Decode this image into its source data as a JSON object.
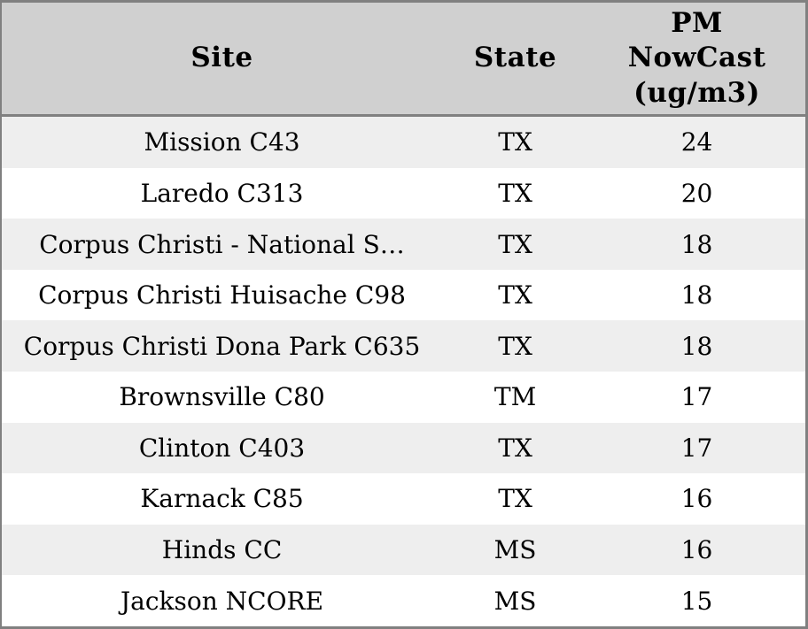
{
  "chart_data": {
    "type": "table",
    "columns": [
      "Site",
      "State",
      "PM NowCast (ug/m3)"
    ],
    "rows": [
      [
        "Mission C43",
        "TX",
        24
      ],
      [
        "Laredo C313",
        "TX",
        20
      ],
      [
        "Corpus Christi - National S…",
        "TX",
        18
      ],
      [
        "Corpus Christi Huisache C98",
        "TX",
        18
      ],
      [
        "Corpus Christi Dona Park C635",
        "TX",
        18
      ],
      [
        "Brownsville C80",
        "TM",
        17
      ],
      [
        "Clinton C403",
        "TX",
        17
      ],
      [
        "Karnack C85",
        "TX",
        16
      ],
      [
        "Hinds CC",
        "MS",
        16
      ],
      [
        "Jackson NCORE",
        "MS",
        15
      ]
    ]
  },
  "table": {
    "headers": {
      "site": "Site",
      "state": "State",
      "pm": "PM\nNowCast\n(ug/m3)"
    }
  },
  "colors": {
    "header_bg": "#d0d0d0",
    "row_alt_bg": "#eeeeee",
    "row_bg": "#ffffff",
    "border": "#808080",
    "text": "#000000"
  }
}
